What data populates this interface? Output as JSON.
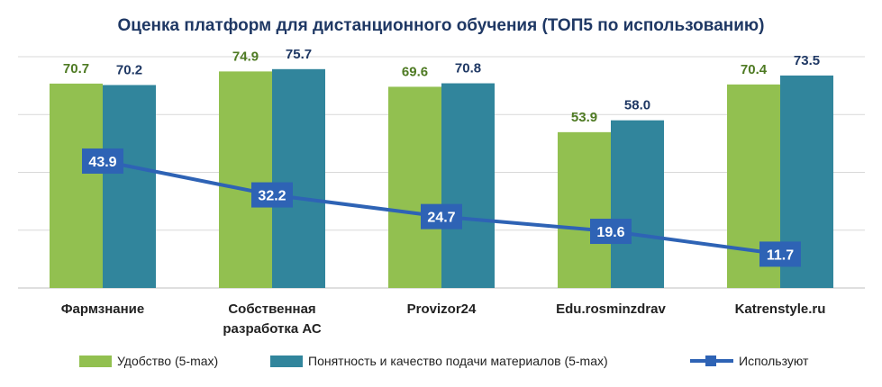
{
  "chart_data": {
    "type": "bar",
    "title": "Оценка платформ для дистанционного обучения (ТОП5 по использованию)",
    "categories": [
      "Фармзнание",
      "Собственная разработка АС",
      "Provizor24",
      "Edu.rosminzdrav",
      "Katrenstyle.ru"
    ],
    "category_lines": [
      [
        "Фармзнание"
      ],
      [
        "Собственная",
        "разработка АС"
      ],
      [
        "Provizor24"
      ],
      [
        "Edu.rosminzdrav"
      ],
      [
        "Katrenstyle.ru"
      ]
    ],
    "bar_series": [
      {
        "name": "Удобство (5-max)",
        "values": [
          70.7,
          74.9,
          69.6,
          53.9,
          70.4
        ],
        "color": "#92C050",
        "label_color": "#4E7A23"
      },
      {
        "name": "Понятность и качество подачи материалов (5-max)",
        "values": [
          70.2,
          75.7,
          70.8,
          58.0,
          73.5
        ],
        "color": "#31859C",
        "label_color": "#1F3864"
      }
    ],
    "line_series": {
      "name": "Используют",
      "values": [
        43.9,
        32.2,
        24.7,
        19.6,
        11.7
      ],
      "color": "#2E63B5"
    },
    "ylim": [
      0,
      80
    ],
    "gridlines": [
      0,
      20,
      40,
      60,
      80
    ],
    "grid": true,
    "legend_position": "bottom",
    "xlabel": "",
    "ylabel": ""
  }
}
